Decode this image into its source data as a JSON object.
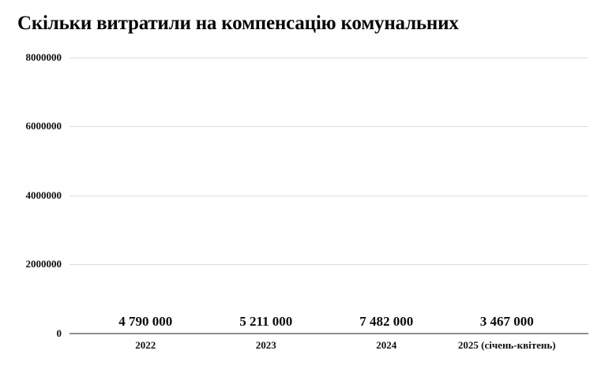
{
  "title": "Скільки витратили на компенсацію комунальних",
  "chart_data": {
    "type": "bar",
    "title": "Скільки витратили на компенсацію комунальних",
    "categories": [
      "2022",
      "2023",
      "2024",
      "2025 (січень-квітень)"
    ],
    "values": [
      4790000,
      5211000,
      7482000,
      3467000
    ],
    "value_labels": [
      "4 790 000",
      "5 211 000",
      "7 482 000",
      "3 467 000"
    ],
    "ylim": [
      0,
      8000000
    ],
    "yticks": [
      8000000,
      6000000,
      4000000,
      2000000,
      0
    ],
    "ytick_labels": [
      "8000000",
      "6000000",
      "4000000",
      "2000000",
      "0"
    ],
    "xlabel": "",
    "ylabel": "",
    "grid": true,
    "legend": "none",
    "colors": {
      "bar": "#771B4D",
      "gridline": "#dddddd",
      "axis_line": "#8f8f8f",
      "text": "#000000",
      "background": "#ffffff"
    }
  }
}
